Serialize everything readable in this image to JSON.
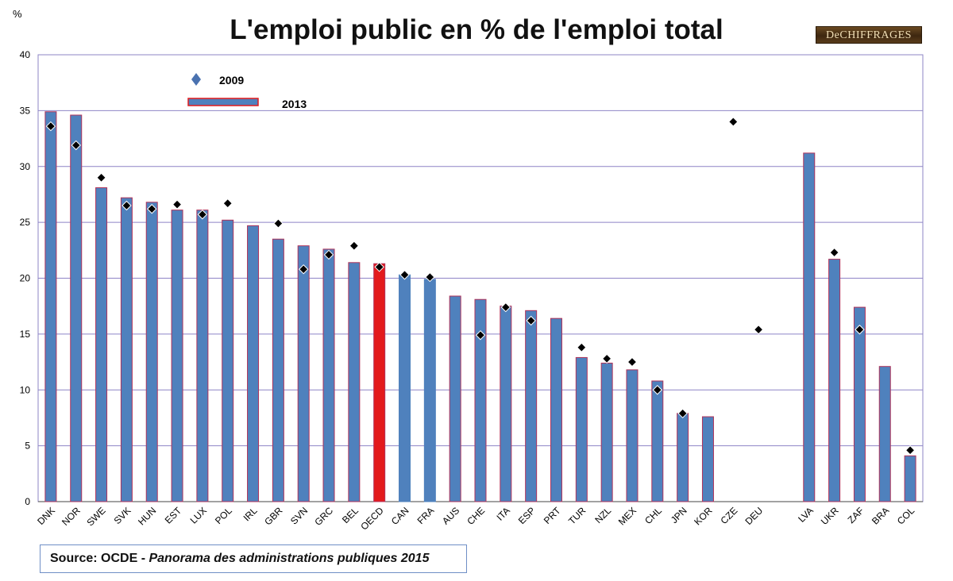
{
  "title": "L'emploi public en % de l'emploi total",
  "y_unit": "%",
  "logo_text": "DeCHIFFRAGES",
  "source_prefix": "Source: OCDE - ",
  "source_title": "Panorama des administrations publiques 2015",
  "colors": {
    "bar_2013": "#4f81bd",
    "bar_outline": "#b0335a",
    "bar_oecd": "#e31a1c",
    "bar_no_outline": "#4f81bd",
    "marker_2009": "#000000",
    "legend_marker_2009": "#4a72b0",
    "grid": "#8e84c6",
    "axis": "#444444"
  },
  "chart_data": {
    "type": "bar",
    "title": "L'emploi public en % de l'emploi total",
    "ylabel": "%",
    "ylim": [
      0,
      40
    ],
    "yticks": [
      0,
      5,
      10,
      15,
      20,
      25,
      30,
      35,
      40
    ],
    "grid": true,
    "legend": {
      "placement": "top-left",
      "entries": [
        {
          "label": "2009",
          "symbol": "diamond"
        },
        {
          "label": "2013",
          "symbol": "bar"
        }
      ]
    },
    "categories": [
      "DNK",
      "NOR",
      "SWE",
      "SVK",
      "HUN",
      "EST",
      "LUX",
      "POL",
      "IRL",
      "GBR",
      "SVN",
      "GRC",
      "BEL",
      "OECD",
      "CAN",
      "FRA",
      "AUS",
      "CHE",
      "ITA",
      "ESP",
      "PRT",
      "TUR",
      "NZL",
      "MEX",
      "CHL",
      "JPN",
      "KOR",
      "CZE",
      "DEU",
      "",
      "LVA",
      "UKR",
      "ZAF",
      "BRA",
      "COL"
    ],
    "series": [
      {
        "name": "2013",
        "kind": "bar",
        "values": [
          34.9,
          34.6,
          28.1,
          27.2,
          26.8,
          26.1,
          26.1,
          25.2,
          24.7,
          23.5,
          22.9,
          22.6,
          21.4,
          21.3,
          20.3,
          19.9,
          18.4,
          18.1,
          17.5,
          17.1,
          16.4,
          12.9,
          12.4,
          11.8,
          10.8,
          7.9,
          7.6,
          null,
          null,
          null,
          31.2,
          21.7,
          17.4,
          12.1,
          4.1
        ]
      },
      {
        "name": "2009",
        "kind": "marker",
        "values": [
          33.6,
          31.9,
          29.0,
          26.5,
          26.2,
          26.6,
          25.7,
          26.7,
          null,
          24.9,
          20.8,
          22.1,
          22.9,
          21.0,
          20.3,
          20.1,
          null,
          14.9,
          17.4,
          16.2,
          null,
          13.8,
          12.8,
          12.5,
          10.0,
          7.9,
          null,
          34.0,
          15.4,
          null,
          null,
          22.3,
          15.4,
          null,
          4.6
        ]
      }
    ],
    "highlight": {
      "OECD": "bar_oecd"
    },
    "no_outline": [
      "CAN",
      "FRA"
    ]
  }
}
